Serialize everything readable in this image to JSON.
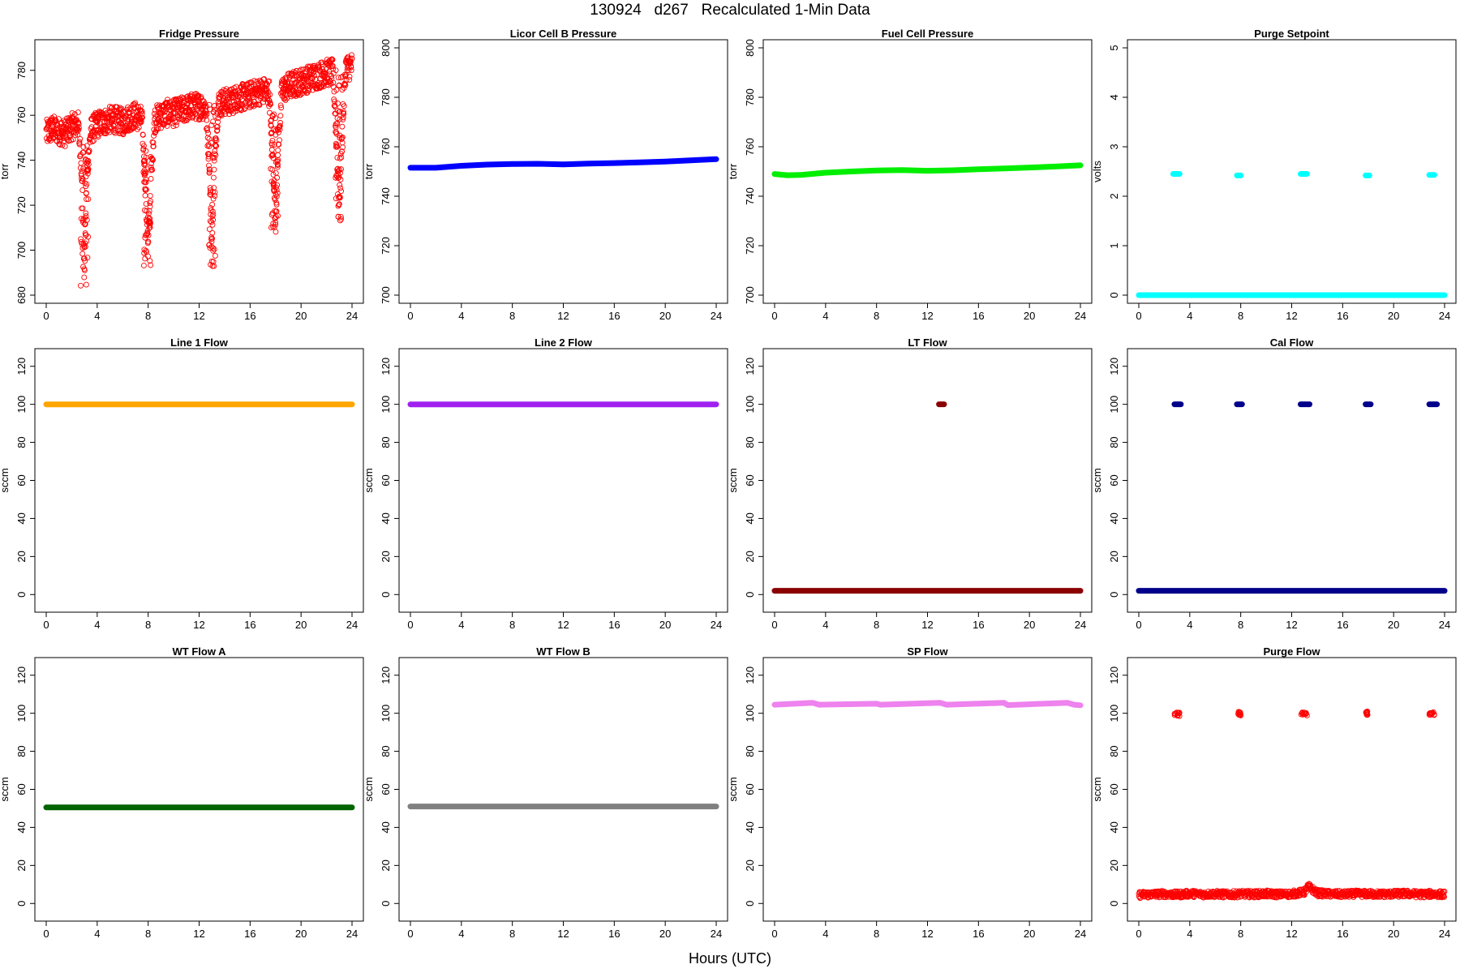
{
  "figure": {
    "title": "130924   d267   Recalculated 1-Min Data",
    "xlabel": "Hours (UTC)"
  },
  "chart_data": [
    {
      "type": "scatter",
      "title": "Fridge Pressure",
      "ylabel": "torr",
      "xlim": [
        0,
        24
      ],
      "ylim": [
        680,
        790
      ],
      "xticks": [
        0,
        4,
        8,
        12,
        16,
        20,
        24
      ],
      "yticks": [
        680,
        700,
        720,
        740,
        760,
        780
      ],
      "color": "#ff0000",
      "marker": "open-circle",
      "series": [
        {
          "x": [
            0,
            0.5,
            1,
            1.5,
            2,
            2.5,
            2.8,
            3,
            3.2,
            3.5,
            4,
            4.5,
            5,
            5.5,
            6,
            6.5,
            7,
            7.5,
            7.8,
            8,
            8.2,
            8.5,
            9,
            9.5,
            10,
            10.5,
            11,
            11.5,
            12,
            12.5,
            12.8,
            13,
            13.2,
            13.5,
            14,
            14.5,
            15,
            15.5,
            16,
            16.5,
            17,
            17.5,
            17.8,
            18,
            18.2,
            18.5,
            19,
            19.5,
            20,
            20.5,
            21,
            21.5,
            22,
            22.5,
            22.8,
            23,
            23.2,
            23.5,
            24
          ],
          "y": [
            752,
            754,
            753,
            752,
            755,
            756,
            735,
            690,
            735,
            753,
            756,
            757,
            758,
            758,
            757,
            759,
            760,
            758,
            730,
            700,
            730,
            758,
            760,
            761,
            761,
            762,
            763,
            764,
            764,
            764,
            740,
            700,
            740,
            765,
            766,
            766,
            768,
            768,
            769,
            770,
            771,
            770,
            740,
            712,
            745,
            771,
            773,
            774,
            775,
            776,
            777,
            778,
            779,
            779,
            750,
            720,
            748,
            781,
            782
          ]
        }
      ]
    },
    {
      "type": "scatter",
      "title": "Licor Cell B Pressure",
      "ylabel": "torr",
      "xlim": [
        0,
        24
      ],
      "ylim": [
        700,
        800
      ],
      "xticks": [
        0,
        4,
        8,
        12,
        16,
        20,
        24
      ],
      "yticks": [
        700,
        720,
        740,
        760,
        780,
        800
      ],
      "color": "#0000ff",
      "marker": "filled-band",
      "series": [
        {
          "x": [
            0,
            2,
            4,
            6,
            8,
            10,
            12,
            14,
            16,
            18,
            20,
            22,
            24
          ],
          "y": [
            751.5,
            751.5,
            752.3,
            752.8,
            753,
            753.1,
            752.9,
            753.2,
            753.4,
            753.7,
            754,
            754.5,
            755
          ]
        }
      ]
    },
    {
      "type": "scatter",
      "title": "Fuel Cell Pressure",
      "ylabel": "torr",
      "xlim": [
        0,
        24
      ],
      "ylim": [
        700,
        800
      ],
      "xticks": [
        0,
        4,
        8,
        12,
        16,
        20,
        24
      ],
      "yticks": [
        700,
        720,
        740,
        760,
        780,
        800
      ],
      "color": "#00ee00",
      "marker": "filled-band",
      "series": [
        {
          "x": [
            0,
            1,
            2,
            4,
            6,
            8,
            10,
            12,
            14,
            16,
            18,
            20,
            22,
            24
          ],
          "y": [
            749,
            748.5,
            748.6,
            749.5,
            750,
            750.4,
            750.6,
            750.3,
            750.5,
            750.9,
            751.2,
            751.6,
            752,
            752.5
          ]
        }
      ]
    },
    {
      "type": "scatter",
      "title": "Purge Setpoint",
      "ylabel": "volts",
      "xlim": [
        0,
        24
      ],
      "ylim": [
        0,
        5
      ],
      "xticks": [
        0,
        4,
        8,
        12,
        16,
        20,
        24
      ],
      "yticks": [
        0,
        1,
        2,
        3,
        4,
        5
      ],
      "color": "#00ffff",
      "marker": "filled-band",
      "series": [
        {
          "x": [
            0,
            24
          ],
          "y": [
            0,
            0
          ]
        }
      ],
      "clusters": [
        {
          "x": [
            2.7,
            3.2
          ],
          "y": 2.45
        },
        {
          "x": [
            7.7,
            8.0
          ],
          "y": 2.42
        },
        {
          "x": [
            12.7,
            13.2
          ],
          "y": 2.45
        },
        {
          "x": [
            17.8,
            18.1
          ],
          "y": 2.42
        },
        {
          "x": [
            22.8,
            23.2
          ],
          "y": 2.43
        }
      ]
    },
    {
      "type": "scatter",
      "title": "Line 1 Flow",
      "ylabel": "sccm",
      "xlim": [
        0,
        24
      ],
      "ylim": [
        -5,
        125
      ],
      "xticks": [
        0,
        4,
        8,
        12,
        16,
        20,
        24
      ],
      "yticks": [
        0,
        20,
        40,
        60,
        80,
        100,
        120
      ],
      "color": "#ffa500",
      "marker": "filled-band",
      "series": [
        {
          "x": [
            0,
            24
          ],
          "y": [
            100,
            100
          ]
        }
      ]
    },
    {
      "type": "scatter",
      "title": "Line 2 Flow",
      "ylabel": "sccm",
      "xlim": [
        0,
        24
      ],
      "ylim": [
        -5,
        125
      ],
      "xticks": [
        0,
        4,
        8,
        12,
        16,
        20,
        24
      ],
      "yticks": [
        0,
        20,
        40,
        60,
        80,
        100,
        120
      ],
      "color": "#a020f0",
      "marker": "filled-band",
      "series": [
        {
          "x": [
            0,
            24
          ],
          "y": [
            100,
            100
          ]
        }
      ]
    },
    {
      "type": "scatter",
      "title": "LT Flow",
      "ylabel": "sccm",
      "xlim": [
        0,
        24
      ],
      "ylim": [
        -5,
        125
      ],
      "xticks": [
        0,
        4,
        8,
        12,
        16,
        20,
        24
      ],
      "yticks": [
        0,
        20,
        40,
        60,
        80,
        100,
        120
      ],
      "color": "#8b0000",
      "marker": "filled-band",
      "series": [
        {
          "x": [
            0,
            24
          ],
          "y": [
            2,
            2
          ]
        }
      ],
      "clusters": [
        {
          "x": [
            12.9,
            13.3
          ],
          "y": 100
        }
      ]
    },
    {
      "type": "scatter",
      "title": "Cal Flow",
      "ylabel": "sccm",
      "xlim": [
        0,
        24
      ],
      "ylim": [
        -5,
        125
      ],
      "xticks": [
        0,
        4,
        8,
        12,
        16,
        20,
        24
      ],
      "yticks": [
        0,
        20,
        40,
        60,
        80,
        100,
        120
      ],
      "color": "#00008b",
      "marker": "filled-band",
      "series": [
        {
          "x": [
            0,
            24
          ],
          "y": [
            2,
            2
          ]
        }
      ],
      "clusters": [
        {
          "x": [
            2.8,
            3.3
          ],
          "y": 100
        },
        {
          "x": [
            7.7,
            8.1
          ],
          "y": 100
        },
        {
          "x": [
            12.7,
            13.4
          ],
          "y": 100
        },
        {
          "x": [
            17.8,
            18.2
          ],
          "y": 100
        },
        {
          "x": [
            22.8,
            23.4
          ],
          "y": 100
        }
      ]
    },
    {
      "type": "scatter",
      "title": "WT Flow A",
      "ylabel": "sccm",
      "xlim": [
        0,
        24
      ],
      "ylim": [
        -5,
        125
      ],
      "xticks": [
        0,
        4,
        8,
        12,
        16,
        20,
        24
      ],
      "yticks": [
        0,
        20,
        40,
        60,
        80,
        100,
        120
      ],
      "color": "#006400",
      "marker": "filled-band",
      "series": [
        {
          "x": [
            0,
            24
          ],
          "y": [
            50.5,
            50.5
          ]
        }
      ]
    },
    {
      "type": "scatter",
      "title": "WT Flow B",
      "ylabel": "sccm",
      "xlim": [
        0,
        24
      ],
      "ylim": [
        -5,
        125
      ],
      "xticks": [
        0,
        4,
        8,
        12,
        16,
        20,
        24
      ],
      "yticks": [
        0,
        20,
        40,
        60,
        80,
        100,
        120
      ],
      "color": "#808080",
      "marker": "filled-band",
      "series": [
        {
          "x": [
            0,
            24
          ],
          "y": [
            51,
            51
          ]
        }
      ]
    },
    {
      "type": "scatter",
      "title": "SP Flow",
      "ylabel": "sccm",
      "xlim": [
        0,
        24
      ],
      "ylim": [
        -5,
        125
      ],
      "xticks": [
        0,
        4,
        8,
        12,
        16,
        20,
        24
      ],
      "yticks": [
        0,
        20,
        40,
        60,
        80,
        100,
        120
      ],
      "color": "#ee82ee",
      "marker": "filled-band",
      "series": [
        {
          "x": [
            0,
            3,
            3.5,
            8,
            8.3,
            13,
            13.5,
            18,
            18.3,
            23,
            23.5,
            24
          ],
          "y": [
            104.5,
            105.5,
            104.5,
            105,
            104.5,
            105.5,
            104.5,
            105.5,
            104.3,
            105.5,
            104.5,
            104.2
          ]
        }
      ]
    },
    {
      "type": "scatter",
      "title": "Purge Flow",
      "ylabel": "sccm",
      "xlim": [
        0,
        24
      ],
      "ylim": [
        -5,
        125
      ],
      "xticks": [
        0,
        4,
        8,
        12,
        16,
        20,
        24
      ],
      "yticks": [
        0,
        20,
        40,
        60,
        80,
        100,
        120
      ],
      "color": "#ff0000",
      "marker": "open-circle",
      "series": [
        {
          "x": [
            0,
            1,
            2,
            3,
            4,
            5,
            6,
            7,
            8,
            9,
            10,
            11,
            12,
            13,
            13.3,
            14,
            15,
            16,
            17,
            18,
            19,
            20,
            21,
            22,
            23,
            24
          ],
          "y": [
            4.5,
            4.8,
            5,
            4.6,
            5.2,
            4.8,
            5,
            4.7,
            5,
            4.9,
            5.1,
            4.8,
            5,
            6,
            9,
            5.5,
            5,
            4.8,
            5.1,
            5,
            4.9,
            5,
            5.2,
            4.8,
            5,
            4.8
          ]
        }
      ],
      "clusters": [
        {
          "x": [
            2.8,
            3.2
          ],
          "y": 99.5
        },
        {
          "x": [
            7.8,
            8.0
          ],
          "y": 99.8
        },
        {
          "x": [
            12.7,
            13.2
          ],
          "y": 99.5
        },
        {
          "x": [
            17.8,
            18.0
          ],
          "y": 100
        },
        {
          "x": [
            22.8,
            23.2
          ],
          "y": 100
        }
      ]
    }
  ]
}
